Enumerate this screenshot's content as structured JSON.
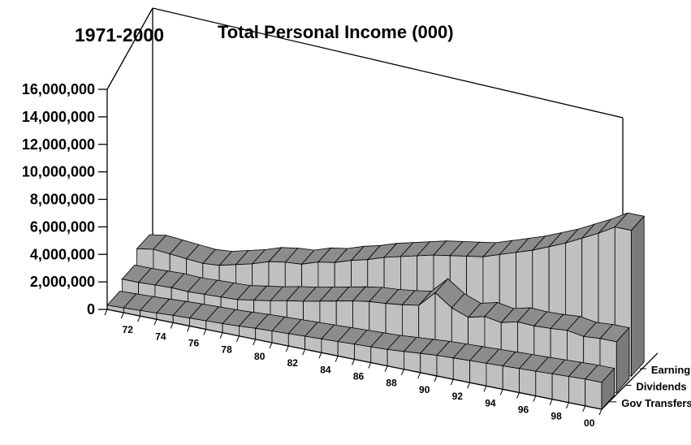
{
  "chart_data": {
    "type": "area",
    "title": "Total Personal Income (000)",
    "subtitle": "1971-2000",
    "y_ticks": [
      "0",
      "2,000,000",
      "4,000,000",
      "6,000,000",
      "8,000,000",
      "10,000,000",
      "12,000,000",
      "14,000,000",
      "16,000,000"
    ],
    "ylim": [
      0,
      16000000
    ],
    "x_tick_labels": [
      "72",
      "74",
      "76",
      "78",
      "80",
      "82",
      "84",
      "86",
      "88",
      "90",
      "92",
      "94",
      "96",
      "98",
      "00"
    ],
    "years": [
      1971,
      1972,
      1973,
      1974,
      1975,
      1976,
      1977,
      1978,
      1979,
      1980,
      1981,
      1982,
      1983,
      1984,
      1985,
      1986,
      1987,
      1988,
      1989,
      1990,
      1991,
      1992,
      1993,
      1994,
      1995,
      1996,
      1997,
      1998,
      1999,
      2000
    ],
    "series": [
      {
        "name": "Gov Transfers",
        "values": [
          300000,
          350000,
          400000,
          460000,
          530000,
          580000,
          620000,
          660000,
          720000,
          800000,
          850000,
          900000,
          950000,
          1000000,
          1050000,
          1100000,
          1150000,
          1200000,
          1300000,
          1400000,
          1500000,
          1550000,
          1600000,
          1650000,
          1700000,
          1750000,
          1800000,
          1850000,
          1900000,
          1950000
        ]
      },
      {
        "name": "Dividends",
        "values": [
          1000000,
          1000000,
          1050000,
          1100000,
          1050000,
          1100000,
          1150000,
          1200000,
          1400000,
          1600000,
          1850000,
          2050000,
          2300000,
          2550000,
          2800000,
          3000000,
          3100000,
          3250000,
          3450000,
          4600000,
          3750000,
          3300000,
          3600000,
          3400000,
          3700000,
          3650000,
          3700000,
          3800000,
          3600000,
          3700000
        ]
      },
      {
        "name": "Earnings",
        "values": [
          2000000,
          2200000,
          2100000,
          2000000,
          1900000,
          2000000,
          2300000,
          2600000,
          3000000,
          3200000,
          3300000,
          3700000,
          3900000,
          4300000,
          4600000,
          5000000,
          5300000,
          5600000,
          5900000,
          6100000,
          6300000,
          6500000,
          6900000,
          7300000,
          7700000,
          8200000,
          8700000,
          9300000,
          9900000,
          10600000
        ]
      }
    ],
    "colors": {
      "top": "#8c8c8c",
      "front": "#c0c0c0",
      "end": "#7a7a7a",
      "light_top": "#dcdcdc"
    }
  }
}
